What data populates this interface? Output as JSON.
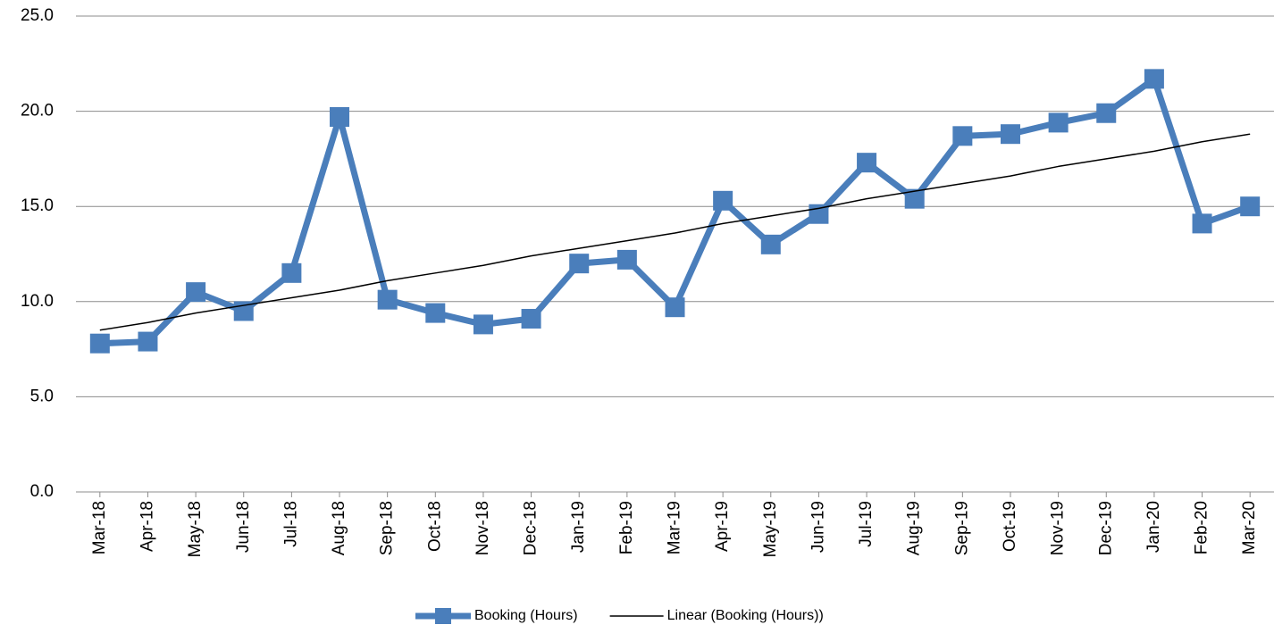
{
  "chart_data": {
    "type": "line",
    "categories": [
      "Mar-18",
      "Apr-18",
      "May-18",
      "Jun-18",
      "Jul-18",
      "Aug-18",
      "Sep-18",
      "Oct-18",
      "Nov-18",
      "Dec-18",
      "Jan-19",
      "Feb-19",
      "Mar-19",
      "Apr-19",
      "May-19",
      "Jun-19",
      "Jul-19",
      "Aug-19",
      "Sep-19",
      "Oct-19",
      "Nov-19",
      "Dec-19",
      "Jan-20",
      "Feb-20",
      "Mar-20"
    ],
    "series": [
      {
        "name": "Booking (Hours)",
        "color": "#4a7ebb",
        "marker": "square",
        "values": [
          7.8,
          7.9,
          10.5,
          9.5,
          11.5,
          19.7,
          10.1,
          9.4,
          8.8,
          9.1,
          12.0,
          12.2,
          9.7,
          15.3,
          13.0,
          14.6,
          17.3,
          15.4,
          18.7,
          18.8,
          19.4,
          19.9,
          21.7,
          14.1,
          15.0
        ]
      },
      {
        "name": "Linear (Booking (Hours))",
        "color": "#000000",
        "marker": "none",
        "values": [
          8.5,
          8.9,
          9.4,
          9.8,
          10.2,
          10.6,
          11.1,
          11.5,
          11.9,
          12.4,
          12.8,
          13.2,
          13.6,
          14.1,
          14.5,
          14.9,
          15.4,
          15.8,
          16.2,
          16.6,
          17.1,
          17.5,
          17.9,
          18.4,
          18.8
        ]
      }
    ],
    "ylim": [
      0,
      25
    ],
    "yticks": [
      {
        "value": 0,
        "label": "0.0"
      },
      {
        "value": 5,
        "label": "5.0"
      },
      {
        "value": 10,
        "label": "10.0"
      },
      {
        "value": 15,
        "label": "15.0"
      },
      {
        "value": 20,
        "label": "20.0"
      },
      {
        "value": 25,
        "label": "25.0"
      }
    ],
    "grid": true,
    "legend": "bottom"
  }
}
